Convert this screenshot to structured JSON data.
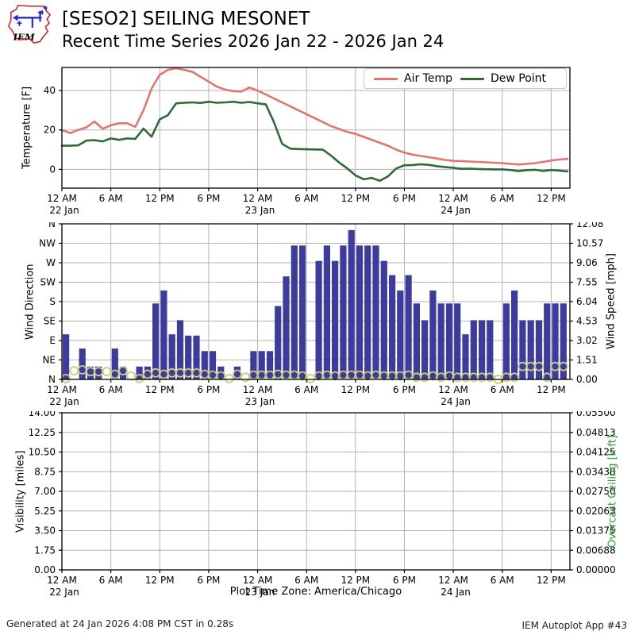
{
  "header": {
    "title": "[SESO2] SEILING MESONET",
    "subtitle": "Recent Time Series 2026 Jan 22 - 2026 Jan 24",
    "logo_text": "IEM"
  },
  "footer": {
    "generated": "Generated at 24 Jan 2026 4:08 PM CST in 0.28s",
    "app_id": "IEM Autoplot App #43"
  },
  "timezone_caption": "Plot Time Zone: America/Chicago",
  "colors": {
    "air_temp": "#e5736f",
    "dew_point": "#2e6b38",
    "wind_bar": "#3d3c9c",
    "wind_dir_circle": "#c9cd7c",
    "grid": "#b3b3b3",
    "axis": "#000000",
    "ceiling_label": "#2ca02c",
    "logo_red": "#cc2222",
    "logo_blue": "#2a2ad0"
  },
  "xaxis": {
    "hours_total": 62.3,
    "ticks": [
      {
        "hour": 0,
        "label": "12 AM",
        "date": "22 Jan"
      },
      {
        "hour": 6,
        "label": "6 AM"
      },
      {
        "hour": 12,
        "label": "12 PM"
      },
      {
        "hour": 18,
        "label": "6 PM"
      },
      {
        "hour": 24,
        "label": "12 AM",
        "date": "23 Jan"
      },
      {
        "hour": 30,
        "label": "6 AM"
      },
      {
        "hour": 36,
        "label": "12 PM"
      },
      {
        "hour": 42,
        "label": "6 PM"
      },
      {
        "hour": 48,
        "label": "12 AM",
        "date": "24 Jan"
      },
      {
        "hour": 54,
        "label": "6 AM"
      },
      {
        "hour": 60,
        "label": "12 PM"
      }
    ]
  },
  "chart_data": [
    {
      "id": "temperature",
      "type": "line",
      "ylabel": "Temperature [F]",
      "ylim": [
        -9.5,
        51.7
      ],
      "yticks": [
        {
          "value": 0,
          "label": "0"
        },
        {
          "value": 20,
          "label": "20"
        },
        {
          "value": 40,
          "label": "40"
        }
      ],
      "x_start_hour": 0,
      "x_step_hours": 1,
      "legend": [
        {
          "label": "Air Temp",
          "color": "#e5736f"
        },
        {
          "label": "Dew Point",
          "color": "#2e6b38"
        }
      ],
      "series": [
        {
          "name": "Air Temp",
          "color": "#e5736f",
          "values": [
            20,
            18.4,
            20,
            21.3,
            24.3,
            20.6,
            22.4,
            23.4,
            23.4,
            21.6,
            30,
            41,
            48,
            50.5,
            51.3,
            50.5,
            49.5,
            47,
            44.5,
            42,
            40.5,
            39.7,
            39.5,
            41.5,
            40,
            38,
            36,
            34,
            32,
            30,
            28,
            26,
            24,
            22,
            20.5,
            19,
            18,
            16.5,
            15,
            13.5,
            12,
            10,
            8.5,
            7.5,
            6.8,
            6.2,
            5.5,
            4.8,
            4.3,
            4.2,
            4,
            3.8,
            3.6,
            3.4,
            3.2,
            2.8,
            2.5,
            2.8,
            3.2,
            3.8,
            4.5,
            5,
            5.3
          ]
        },
        {
          "name": "Dew Point",
          "color": "#2e6b38",
          "values": [
            12,
            12,
            12.2,
            14.6,
            14.8,
            14.2,
            15.7,
            15,
            15.7,
            15.5,
            20.7,
            16.6,
            25.4,
            27.5,
            33.5,
            33.8,
            34,
            33.7,
            34.3,
            33.8,
            34,
            34.3,
            33.8,
            34.2,
            33.5,
            33,
            24,
            13,
            10.5,
            10.3,
            10.2,
            10.1,
            10,
            7,
            3.5,
            0.5,
            -3,
            -5,
            -4.3,
            -5.8,
            -3.5,
            0.5,
            2.1,
            2.2,
            2.6,
            2.3,
            1.6,
            1.2,
            0.8,
            0.3,
            0.4,
            0.2,
            0.1,
            0,
            0,
            -0.3,
            -0.9,
            -0.4,
            -0.2,
            -0.8,
            -0.3,
            -0.6,
            -1
          ]
        }
      ]
    },
    {
      "id": "wind",
      "type": "bar",
      "ylabel_left": "Wind Direction",
      "ylabel_right": "Wind Speed [mph]",
      "dir_ticks_top_to_bottom": [
        "N",
        "NW",
        "W",
        "SW",
        "S",
        "SE",
        "E",
        "NE",
        "N"
      ],
      "speed_ticks_top_to_bottom": [
        "12.08",
        "10.57",
        "9.06",
        "7.55",
        "6.04",
        "4.53",
        "3.02",
        "1.51",
        "0.00"
      ],
      "speed_axis_max": 12.08,
      "dir_axis_max": 360,
      "x_start_hour": 0,
      "x_step_hours": 1,
      "speed_mph": [
        3.5,
        0,
        2.4,
        1,
        1,
        0,
        2.4,
        1,
        0,
        1,
        1,
        5.9,
        6.9,
        3.5,
        4.6,
        3.4,
        3.4,
        2.2,
        2.2,
        1,
        0,
        1,
        0,
        2.2,
        2.2,
        2.2,
        5.7,
        8,
        10.4,
        10.4,
        0,
        9.2,
        10.4,
        9.2,
        10.4,
        11.6,
        10.4,
        10.4,
        10.4,
        9.2,
        8.1,
        6.9,
        8.1,
        5.9,
        4.6,
        6.9,
        5.9,
        5.9,
        5.9,
        3.5,
        4.6,
        4.6,
        4.6,
        0,
        5.9,
        6.9,
        4.6,
        4.6,
        4.6,
        5.9,
        5.9,
        5.9
      ],
      "direction_deg": [
        2,
        20,
        22,
        18,
        18,
        18,
        12,
        20,
        8,
        2,
        12,
        15,
        12,
        15,
        15,
        15,
        15,
        12,
        10,
        8,
        2,
        12,
        5,
        10,
        10,
        10,
        12,
        10,
        10,
        8,
        2,
        8,
        10,
        8,
        10,
        10,
        10,
        8,
        10,
        8,
        8,
        8,
        10,
        5,
        5,
        8,
        5,
        8,
        5,
        5,
        5,
        5,
        5,
        0,
        5,
        5,
        30,
        30,
        30,
        5,
        30,
        30
      ]
    },
    {
      "id": "visibility",
      "type": "line",
      "ylabel_left": "Visibility [miles]",
      "ylabel_right": "Overcast Ceiling [k ft]",
      "yticks_left_top_to_bottom": [
        "14.00",
        "12.25",
        "10.50",
        "8.75",
        "7.00",
        "5.25",
        "3.50",
        "1.75",
        "0.00"
      ],
      "yticks_right_top_to_bottom": [
        "0.05500",
        "0.04813",
        "0.04125",
        "0.03438",
        "0.02750",
        "0.02063",
        "0.01375",
        "0.00688",
        "0.00000"
      ],
      "series": []
    }
  ]
}
